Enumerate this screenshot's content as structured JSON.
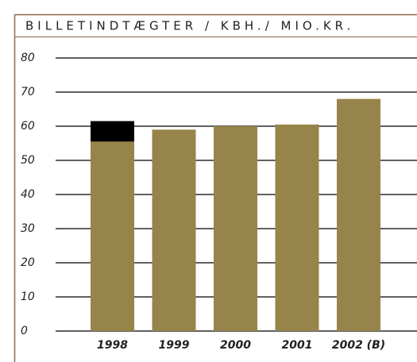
{
  "chart_data": {
    "type": "bar",
    "title": "BILLETINDTÆGTER / KBH./ MIO.KR.",
    "categories": [
      "1998",
      "1999",
      "2000",
      "2001",
      "2002 (B)"
    ],
    "stacked": true,
    "series": [
      {
        "color": "#97844a",
        "values": [
          55.5,
          59,
          60,
          60.5,
          68
        ]
      },
      {
        "color": "#000000",
        "values": [
          6,
          null,
          null,
          null,
          null
        ]
      }
    ],
    "ylim": [
      0,
      80
    ],
    "yticks": [
      0,
      10,
      20,
      30,
      40,
      50,
      60,
      70,
      80
    ],
    "grid": true
  }
}
